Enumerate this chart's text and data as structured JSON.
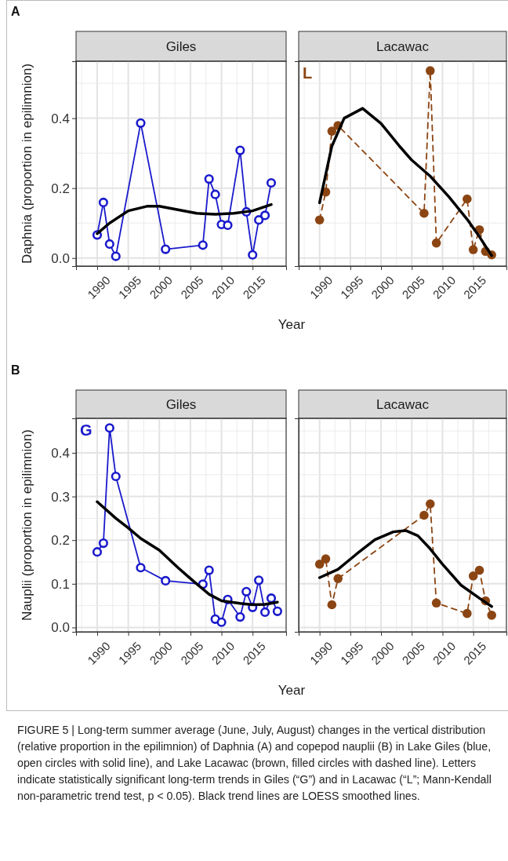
{
  "chart_data": [
    {
      "type": "line",
      "title": "Giles",
      "xlabel": "Year",
      "ylabel": "Daphnia (proportion in epilimnion)",
      "xlim": [
        1986.6,
        2020.4
      ],
      "ylim": [
        -0.023,
        0.563
      ],
      "xticks": [
        1990,
        1995,
        2000,
        2005,
        2010,
        2015
      ],
      "yticks": [
        {
          "value": 0,
          "label": "0.0"
        },
        {
          "value": 0.2,
          "label": "0.2"
        },
        {
          "value": 0.4,
          "label": "0.4"
        }
      ],
      "grid": true,
      "annotations": [
        "A"
      ],
      "series": [
        {
          "color": "#1a1acc",
          "line_style": "solid",
          "marker": "circle",
          "x": [
            1990,
            1991,
            1992,
            1993,
            1997,
            2001,
            2007,
            2008,
            2009,
            2010,
            2011,
            2013,
            2014,
            2015,
            2016,
            2017,
            2018
          ],
          "values": [
            0.066,
            0.159,
            0.04,
            0.005,
            0.386,
            0.025,
            0.037,
            0.226,
            0.182,
            0.096,
            0.094,
            0.308,
            0.132,
            0.009,
            0.109,
            0.122,
            0.215
          ]
        },
        {
          "type": "line",
          "color": "#000000",
          "line_style": "solid",
          "marker": "none",
          "x": [
            1990,
            1992,
            1995,
            1998,
            2000,
            2003,
            2006,
            2009,
            2012,
            2015,
            2018
          ],
          "values": [
            0.07,
            0.1,
            0.135,
            0.148,
            0.148,
            0.138,
            0.128,
            0.125,
            0.128,
            0.135,
            0.153
          ]
        }
      ]
    },
    {
      "type": "line",
      "title": "Lacawac",
      "xlim": [
        1986.6,
        2020.4
      ],
      "ylim": [
        -0.023,
        0.563
      ],
      "xticks": [
        1990,
        1995,
        2000,
        2005,
        2010,
        2015
      ],
      "yticks": [
        0,
        0.2,
        0.4
      ],
      "tick_labels": "x",
      "grid": true,
      "annotations": [
        "L"
      ],
      "series": [
        {
          "color": "#8b4513",
          "line_style": "dashed",
          "marker": "circle",
          "x": [
            1990,
            1991,
            1992,
            1993,
            2007,
            2008,
            2009,
            2014,
            2015,
            2016,
            2017,
            2018
          ],
          "values": [
            0.109,
            0.189,
            0.363,
            0.379,
            0.128,
            0.536,
            0.043,
            0.169,
            0.024,
            0.081,
            0.019,
            0.009
          ]
        },
        {
          "type": "line",
          "color": "#000000",
          "line_style": "solid",
          "marker": "none",
          "x": [
            1990,
            1992,
            1994,
            1997,
            2000,
            2003,
            2005,
            2008,
            2011,
            2014,
            2016,
            2018
          ],
          "values": [
            0.158,
            0.32,
            0.4,
            0.428,
            0.385,
            0.32,
            0.28,
            0.234,
            0.176,
            0.111,
            0.061,
            0.007
          ]
        }
      ]
    },
    {
      "type": "line",
      "title": "Giles",
      "xlabel": "Year",
      "ylabel": "Nauplii (proportion in epilimnion)",
      "xlim": [
        1986.6,
        2020.4
      ],
      "ylim": [
        -0.01,
        0.479
      ],
      "xticks": [
        1990,
        1995,
        2000,
        2005,
        2010,
        2015
      ],
      "yticks": [
        {
          "value": 0,
          "label": "0.0"
        },
        {
          "value": 0.1,
          "label": "0.1"
        },
        {
          "value": 0.2,
          "label": "0.2"
        },
        {
          "value": 0.3,
          "label": "0.3"
        },
        {
          "value": 0.4,
          "label": "0.4"
        }
      ],
      "grid": true,
      "annotations": [
        "B",
        "G"
      ],
      "series": [
        {
          "color": "#1a1acc",
          "line_style": "solid",
          "marker": "circle",
          "x": [
            1990,
            1991,
            1992,
            1993,
            1997,
            2001,
            2007,
            2008,
            2009,
            2010,
            2011,
            2013,
            2014,
            2015,
            2016,
            2017,
            2018,
            2019
          ],
          "values": [
            0.173,
            0.193,
            0.457,
            0.346,
            0.137,
            0.107,
            0.099,
            0.131,
            0.019,
            0.012,
            0.064,
            0.024,
            0.082,
            0.046,
            0.108,
            0.035,
            0.067,
            0.037
          ]
        },
        {
          "type": "line",
          "color": "#000000",
          "line_style": "solid",
          "marker": "none",
          "x": [
            1990,
            1993,
            1995,
            1997,
            2000,
            2003,
            2005,
            2008,
            2010,
            2013,
            2015,
            2017,
            2019
          ],
          "values": [
            0.288,
            0.25,
            0.228,
            0.204,
            0.177,
            0.137,
            0.112,
            0.076,
            0.061,
            0.055,
            0.052,
            0.053,
            0.058
          ]
        }
      ]
    },
    {
      "type": "line",
      "title": "Lacawac",
      "xlim": [
        1986.6,
        2020.4
      ],
      "ylim": [
        -0.01,
        0.479
      ],
      "xticks": [
        1990,
        1995,
        2000,
        2005,
        2010,
        2015
      ],
      "yticks": [
        0,
        0.1,
        0.2,
        0.3,
        0.4
      ],
      "tick_labels": "x",
      "grid": true,
      "annotations": [
        "FIGURE 5 | Long-term summer average (June, July, August) changes in the vertical distribution (relative proportion in the epilimnion) of Daphnia (A) and copepod nauplii (B) in Lake Giles (blue, open circles with solid line), and Lake Lacawac (brown, filled circles with dashed line). Letters indicate statistically significant long-term trends in Giles (“G”) and in Lacawac (“L”; Mann-Kendall non-parametric trend test, p < 0.05). Black trend lines are LOESS smoothed lines."
      ],
      "series": [
        {
          "color": "#8b4513",
          "line_style": "dashed",
          "marker": "circle",
          "x": [
            1990,
            1991,
            1992,
            1993,
            2007,
            2008,
            2009,
            2014,
            2015,
            2016,
            2017,
            2018
          ],
          "values": [
            0.145,
            0.157,
            0.052,
            0.112,
            0.257,
            0.283,
            0.056,
            0.032,
            0.118,
            0.131,
            0.061,
            0.028
          ]
        },
        {
          "type": "line",
          "color": "#000000",
          "line_style": "solid",
          "marker": "none",
          "x": [
            1990,
            1993,
            1996,
            1999,
            2002,
            2004,
            2006,
            2008,
            2010,
            2013,
            2016,
            2018
          ],
          "values": [
            0.114,
            0.133,
            0.168,
            0.201,
            0.219,
            0.222,
            0.21,
            0.18,
            0.145,
            0.097,
            0.067,
            0.048
          ]
        }
      ]
    }
  ]
}
